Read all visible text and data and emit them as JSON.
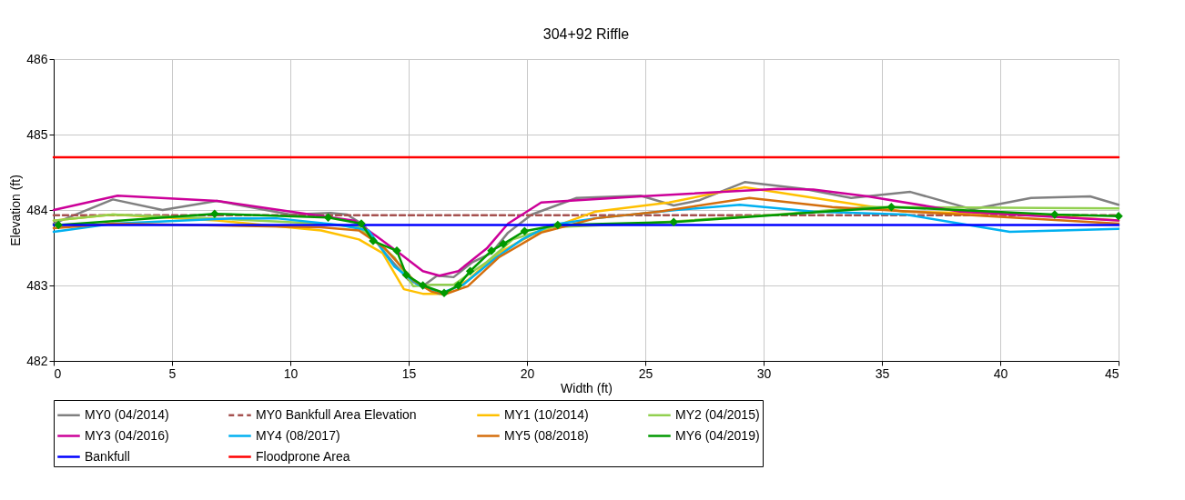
{
  "chart_data": {
    "type": "line",
    "title": "304+92 Riffle",
    "xlabel": "Width (ft)",
    "ylabel": "Elevation (ft)",
    "xlim": [
      0,
      45
    ],
    "xticks": [
      0,
      5,
      10,
      15,
      20,
      25,
      30,
      35,
      40,
      45
    ],
    "ylim": [
      482,
      486
    ],
    "yticks": [
      482,
      483,
      484,
      485,
      486
    ],
    "grid": true,
    "legend": "bottom",
    "series": [
      {
        "name": "MY0 (04/2014)",
        "color": "#808080",
        "line_style": "solid",
        "marker": "none",
        "x": [
          0,
          2.5,
          4.6,
          6.9,
          10,
          11.7,
          12.4,
          13.1,
          14,
          15,
          15.6,
          16.2,
          16.9,
          17.7,
          18.5,
          19.2,
          20.2,
          22.1,
          24.8,
          26.2,
          27.3,
          29.2,
          31.7,
          33.7,
          36.2,
          38.8,
          41.3,
          43.8,
          45
        ],
        "values": [
          483.82,
          484.14,
          484.0,
          484.12,
          483.94,
          483.96,
          483.94,
          483.8,
          483.43,
          483.07,
          482.99,
          483.13,
          483.11,
          483.31,
          483.43,
          483.7,
          483.94,
          484.16,
          484.19,
          484.06,
          484.13,
          484.37,
          484.28,
          484.16,
          484.24,
          484.01,
          484.16,
          484.18,
          484.07
        ]
      },
      {
        "name": "MY0 Bankfull Area Elevation",
        "color": "#a5514f",
        "line_style": "dashed",
        "marker": "none",
        "x": [
          0,
          45
        ],
        "values": [
          483.93,
          483.93
        ]
      },
      {
        "name": "MY1 (10/2014)",
        "color": "#ffc000",
        "line_style": "solid",
        "marker": "none",
        "x": [
          0,
          2.5,
          6.9,
          11.3,
          12.9,
          13.9,
          14.8,
          15.6,
          16.5,
          17.5,
          18.8,
          20.2,
          22.9,
          26,
          29.2,
          31.7,
          35.9,
          41.3,
          45
        ],
        "values": [
          483.86,
          483.94,
          483.86,
          483.73,
          483.61,
          483.43,
          482.95,
          482.89,
          482.89,
          483.07,
          483.43,
          483.67,
          483.98,
          484.1,
          484.3,
          484.18,
          483.98,
          483.94,
          483.86
        ]
      },
      {
        "name": "MY2 (04/2015)",
        "color": "#92d050",
        "line_style": "solid",
        "marker": "none",
        "x": [
          0,
          2.5,
          6.7,
          11.3,
          12.9,
          14.4,
          15.2,
          16,
          16.9,
          18.3,
          19.4,
          21,
          24.8,
          30.6,
          34.4,
          45
        ],
        "values": [
          483.86,
          483.94,
          483.89,
          483.82,
          483.77,
          483.37,
          482.99,
          483.01,
          483.01,
          483.31,
          483.61,
          483.77,
          483.82,
          483.94,
          484.04,
          484.02
        ]
      },
      {
        "name": "MY3 (04/2016)",
        "color": "#cc0099",
        "line_style": "solid",
        "marker": "none",
        "x": [
          0,
          2.7,
          6.9,
          10,
          12.7,
          13.65,
          14.6,
          15.6,
          16.3,
          17.1,
          18.3,
          19.2,
          20.6,
          24.8,
          30.6,
          32.1,
          34.4,
          38.3,
          45
        ],
        "values": [
          484.0,
          484.19,
          484.12,
          483.98,
          483.86,
          483.65,
          483.43,
          483.19,
          483.13,
          483.19,
          483.49,
          483.82,
          484.1,
          484.18,
          484.28,
          484.27,
          484.18,
          483.98,
          483.86
        ]
      },
      {
        "name": "MY4 (08/2017)",
        "color": "#00b0f0",
        "line_style": "solid",
        "marker": "none",
        "x": [
          0,
          2.5,
          7.5,
          9.4,
          12.1,
          13.3,
          14.4,
          15.4,
          16.3,
          17.3,
          18.7,
          19.8,
          21,
          22.9,
          26.3,
          29,
          32.1,
          36,
          40.4,
          45
        ],
        "values": [
          483.71,
          483.82,
          483.89,
          483.89,
          483.8,
          483.73,
          483.25,
          483.01,
          482.89,
          483.01,
          483.37,
          483.61,
          483.8,
          483.89,
          484.0,
          484.07,
          483.98,
          483.94,
          483.71,
          483.75
        ]
      },
      {
        "name": "MY5 (08/2018)",
        "color": "#d46e0d",
        "line_style": "solid",
        "marker": "none",
        "x": [
          0,
          2.5,
          11.3,
          12.9,
          14,
          15.2,
          15.96,
          16.5,
          17.5,
          18.8,
          20.6,
          22.9,
          25.6,
          29.4,
          32.9,
          38.3,
          45
        ],
        "values": [
          483.76,
          483.82,
          483.77,
          483.73,
          483.49,
          483.07,
          482.92,
          482.88,
          482.99,
          483.37,
          483.7,
          483.89,
          483.98,
          484.16,
          484.04,
          483.94,
          483.82
        ]
      },
      {
        "name": "MY6 (04/2019)",
        "color": "#009900",
        "line_style": "solid",
        "marker": "diamond",
        "x": [
          0.2,
          6.8,
          11.6,
          13.0,
          13.5,
          14.5,
          14.9,
          15.6,
          16.5,
          17.1,
          17.6,
          18.5,
          19.0,
          19.9,
          21.3,
          26.2,
          35.4,
          42.3,
          45
        ],
        "values": [
          483.8,
          483.95,
          483.9,
          483.82,
          483.59,
          483.46,
          483.14,
          483.0,
          482.9,
          483.0,
          483.19,
          483.46,
          483.55,
          483.72,
          483.8,
          483.84,
          484.04,
          483.94,
          483.92
        ]
      },
      {
        "name": "Bankfull",
        "color": "#0000ff",
        "line_style": "solid",
        "marker": "none",
        "x": [
          0,
          45
        ],
        "values": [
          483.8,
          483.8
        ]
      },
      {
        "name": "Floodprone Area",
        "color": "#ff0000",
        "line_style": "solid",
        "marker": "none",
        "x": [
          0,
          45
        ],
        "values": [
          484.7,
          484.7
        ]
      }
    ]
  }
}
